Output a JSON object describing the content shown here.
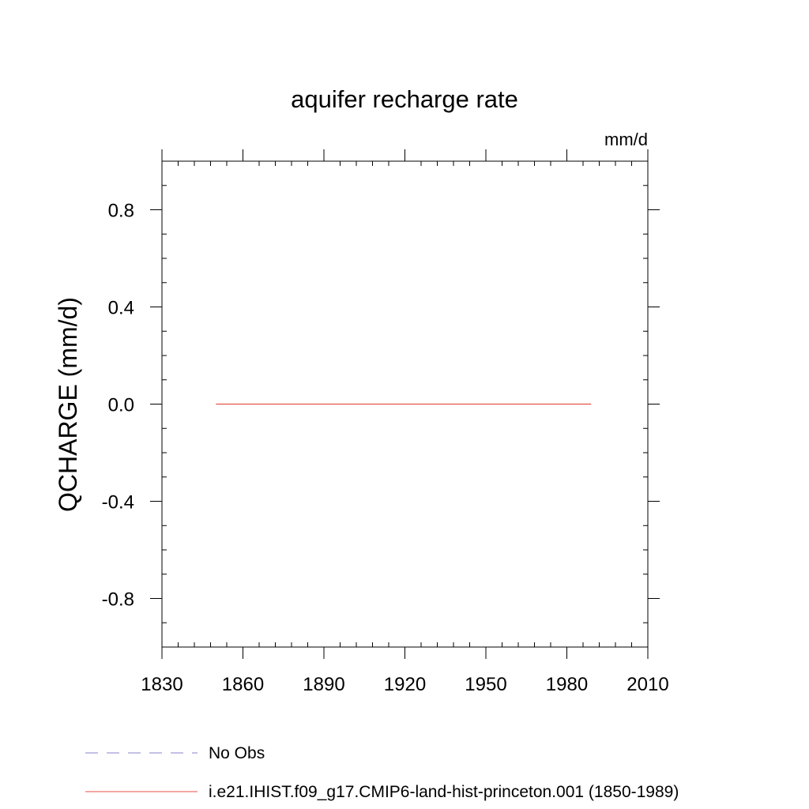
{
  "chart_data": {
    "type": "line",
    "title": "aquifer recharge rate",
    "units": "mm/d",
    "ylabel": "QCHARGE  (mm/d)",
    "xlabel": "",
    "xlim": [
      1830,
      2010
    ],
    "ylim": [
      -1.0,
      1.0
    ],
    "x_ticks": [
      1830,
      1860,
      1890,
      1920,
      1950,
      1980,
      2010
    ],
    "x_tick_labels": [
      "1830",
      "1860",
      "1890",
      "1920",
      "1950",
      "1980",
      "2010"
    ],
    "y_ticks": [
      0.8,
      0.4,
      0.0,
      -0.4,
      -0.8
    ],
    "y_tick_labels": [
      "0.8",
      "0.4",
      "0.0",
      "-0.4",
      "-0.8"
    ],
    "grid": false,
    "legend_position": "bottom-left",
    "series": [
      {
        "name": "No Obs",
        "color": "#8a84c8",
        "dash": "dashed",
        "x": [],
        "y": []
      },
      {
        "name": "i.e21.IHIST.f09_g17.CMIP6-land-hist-princeton.001 (1850-1989)",
        "color": "#e8514a",
        "dash": "solid",
        "x": [
          1850,
          1989
        ],
        "y": [
          0.0,
          0.0
        ]
      }
    ]
  }
}
